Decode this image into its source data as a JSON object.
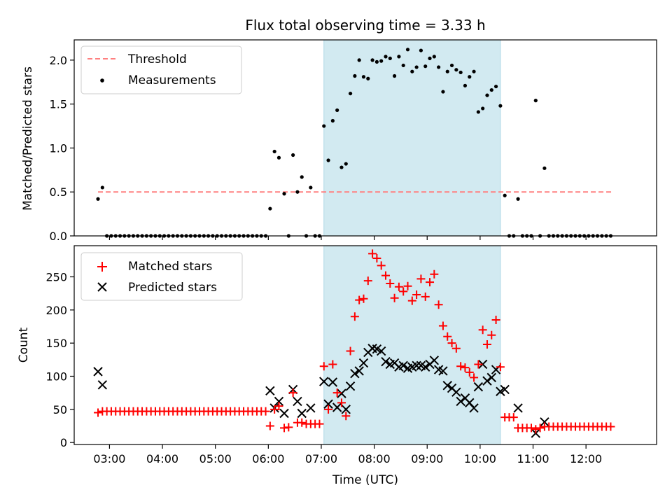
{
  "title": "Flux total observing time = 3.33 h",
  "colors": {
    "shade": "#add8e6",
    "threshold": "#ff8080",
    "measurements": "#000000",
    "matched": "#ff0000",
    "predicted": "#000000"
  },
  "chart_data": [
    {
      "type": "scatter",
      "ylabel": "Matched/Predicted stars",
      "ylim": [
        0,
        2.23
      ],
      "yticks": [
        0.0,
        0.5,
        1.0,
        1.5,
        2.0
      ],
      "ytick_labels": [
        "0.0",
        "0.5",
        "1.0",
        "1.5",
        "2.0"
      ],
      "shaded_span": [
        "07:03",
        "10:23"
      ],
      "legend": {
        "placement": "upper left",
        "entries": [
          "Threshold",
          "Measurements"
        ]
      },
      "threshold": {
        "name": "Threshold",
        "value": 0.5,
        "x_range": [
          "02:47",
          "12:31"
        ]
      },
      "series": [
        {
          "name": "Measurements",
          "points": [
            [
              "02:47",
              0.42
            ],
            [
              "02:52",
              0.55
            ],
            [
              "06:02",
              0.31
            ],
            [
              "06:07",
              0.96
            ],
            [
              "06:12",
              0.89
            ],
            [
              "06:18",
              0.48
            ],
            [
              "06:23",
              0.0
            ],
            [
              "06:28",
              0.92
            ],
            [
              "06:33",
              0.5
            ],
            [
              "06:38",
              0.67
            ],
            [
              "06:43",
              0.0
            ],
            [
              "06:48",
              0.55
            ],
            [
              "06:53",
              0.0
            ],
            [
              "06:58",
              0.0
            ],
            [
              "07:03",
              1.25
            ],
            [
              "07:08",
              0.86
            ],
            [
              "07:13",
              1.31
            ],
            [
              "07:18",
              1.43
            ],
            [
              "07:23",
              0.78
            ],
            [
              "07:28",
              0.82
            ],
            [
              "07:33",
              1.62
            ],
            [
              "07:38",
              1.82
            ],
            [
              "07:43",
              2.0
            ],
            [
              "07:48",
              1.81
            ],
            [
              "07:53",
              1.79
            ],
            [
              "07:58",
              2.0
            ],
            [
              "08:03",
              1.98
            ],
            [
              "08:08",
              1.99
            ],
            [
              "08:13",
              2.04
            ],
            [
              "08:18",
              2.02
            ],
            [
              "08:23",
              1.82
            ],
            [
              "08:28",
              2.04
            ],
            [
              "08:33",
              1.94
            ],
            [
              "08:38",
              2.12
            ],
            [
              "08:43",
              1.87
            ],
            [
              "08:48",
              1.92
            ],
            [
              "08:53",
              2.11
            ],
            [
              "08:58",
              1.93
            ],
            [
              "09:03",
              2.02
            ],
            [
              "09:08",
              2.04
            ],
            [
              "09:13",
              1.92
            ],
            [
              "09:18",
              1.64
            ],
            [
              "09:23",
              1.87
            ],
            [
              "09:28",
              1.94
            ],
            [
              "09:33",
              1.89
            ],
            [
              "09:38",
              1.86
            ],
            [
              "09:43",
              1.71
            ],
            [
              "09:48",
              1.81
            ],
            [
              "09:53",
              1.87
            ],
            [
              "09:58",
              1.41
            ],
            [
              "10:03",
              1.45
            ],
            [
              "10:08",
              1.6
            ],
            [
              "10:13",
              1.66
            ],
            [
              "10:18",
              1.7
            ],
            [
              "10:23",
              1.48
            ],
            [
              "10:28",
              0.46
            ],
            [
              "10:33",
              0.0
            ],
            [
              "10:38",
              0.0
            ],
            [
              "10:43",
              0.42
            ],
            [
              "10:48",
              0.0
            ],
            [
              "10:53",
              0.0
            ],
            [
              "10:58",
              0.0
            ],
            [
              "11:03",
              1.54
            ],
            [
              "11:08",
              0.0
            ],
            [
              "11:13",
              0.77
            ]
          ],
          "zero_runs": [
            [
              "02:57",
              "05:57"
            ],
            [
              "11:18",
              "12:28"
            ]
          ]
        }
      ]
    },
    {
      "type": "scatter",
      "xlabel": "Time (UTC)",
      "ylabel": "Count",
      "ylim": [
        -3,
        297
      ],
      "yticks": [
        0,
        50,
        100,
        150,
        200,
        250
      ],
      "ytick_labels": [
        "0",
        "50",
        "100",
        "150",
        "200",
        "250"
      ],
      "xticks": [
        "03:00",
        "04:00",
        "05:00",
        "06:00",
        "07:00",
        "08:00",
        "09:00",
        "10:00",
        "11:00",
        "12:00"
      ],
      "xlim": [
        "02:20",
        "13:20"
      ],
      "shaded_span": [
        "07:03",
        "10:23"
      ],
      "legend": {
        "placement": "upper left",
        "entries": [
          "Matched stars",
          "Predicted stars"
        ]
      },
      "series": [
        {
          "name": "Matched stars",
          "marker": "plus",
          "points": [
            [
              "02:47",
              45
            ],
            [
              "02:52",
              47
            ],
            [
              "06:02",
              25
            ],
            [
              "06:07",
              50
            ],
            [
              "06:12",
              55
            ],
            [
              "06:18",
              22
            ],
            [
              "06:23",
              23
            ],
            [
              "06:28",
              75
            ],
            [
              "06:33",
              30
            ],
            [
              "06:38",
              30
            ],
            [
              "06:43",
              28
            ],
            [
              "06:48",
              28
            ],
            [
              "06:53",
              28
            ],
            [
              "06:58",
              28
            ],
            [
              "07:03",
              115
            ],
            [
              "07:08",
              50
            ],
            [
              "07:13",
              118
            ],
            [
              "07:18",
              75
            ],
            [
              "07:23",
              60
            ],
            [
              "07:28",
              40
            ],
            [
              "07:33",
              138
            ],
            [
              "07:38",
              190
            ],
            [
              "07:43",
              215
            ],
            [
              "07:48",
              217
            ],
            [
              "07:53",
              244
            ],
            [
              "07:58",
              285
            ],
            [
              "08:03",
              278
            ],
            [
              "08:08",
              267
            ],
            [
              "08:13",
              252
            ],
            [
              "08:18",
              240
            ],
            [
              "08:23",
              218
            ],
            [
              "08:28",
              235
            ],
            [
              "08:33",
              228
            ],
            [
              "08:38",
              236
            ],
            [
              "08:43",
              214
            ],
            [
              "08:48",
              223
            ],
            [
              "08:53",
              247
            ],
            [
              "08:58",
              220
            ],
            [
              "09:03",
              242
            ],
            [
              "09:08",
              254
            ],
            [
              "09:13",
              208
            ],
            [
              "09:18",
              176
            ],
            [
              "09:23",
              160
            ],
            [
              "09:28",
              150
            ],
            [
              "09:33",
              142
            ],
            [
              "09:38",
              115
            ],
            [
              "09:43",
              113
            ],
            [
              "09:48",
              106
            ],
            [
              "09:53",
              98
            ],
            [
              "09:58",
              118
            ],
            [
              "10:03",
              170
            ],
            [
              "10:08",
              148
            ],
            [
              "10:13",
              162
            ],
            [
              "10:18",
              185
            ],
            [
              "10:23",
              114
            ],
            [
              "10:28",
              38
            ],
            [
              "10:33",
              38
            ],
            [
              "10:38",
              38
            ],
            [
              "10:43",
              22
            ],
            [
              "10:48",
              22
            ],
            [
              "10:53",
              22
            ],
            [
              "10:58",
              22
            ],
            [
              "11:03",
              20
            ],
            [
              "11:08",
              22
            ],
            [
              "11:13",
              24
            ]
          ],
          "constant_runs": [
            [
              "02:57",
              "05:57",
              47
            ],
            [
              "11:18",
              "12:28",
              24
            ]
          ]
        },
        {
          "name": "Predicted stars",
          "marker": "x",
          "points": [
            [
              "02:47",
              107
            ],
            [
              "02:52",
              87
            ],
            [
              "06:02",
              78
            ],
            [
              "06:07",
              52
            ],
            [
              "06:12",
              62
            ],
            [
              "06:18",
              44
            ],
            [
              "06:28",
              80
            ],
            [
              "06:33",
              62
            ],
            [
              "06:38",
              44
            ],
            [
              "06:48",
              52
            ],
            [
              "07:03",
              92
            ],
            [
              "07:08",
              58
            ],
            [
              "07:13",
              91
            ],
            [
              "07:18",
              53
            ],
            [
              "07:23",
              74
            ],
            [
              "07:28",
              50
            ],
            [
              "07:33",
              85
            ],
            [
              "07:38",
              104
            ],
            [
              "07:43",
              108
            ],
            [
              "07:48",
              120
            ],
            [
              "07:53",
              136
            ],
            [
              "07:58",
              142
            ],
            [
              "08:03",
              141
            ],
            [
              "08:08",
              138
            ],
            [
              "08:13",
              122
            ],
            [
              "08:18",
              118
            ],
            [
              "08:23",
              120
            ],
            [
              "08:28",
              114
            ],
            [
              "08:33",
              116
            ],
            [
              "08:38",
              112
            ],
            [
              "08:43",
              114
            ],
            [
              "08:48",
              116
            ],
            [
              "08:53",
              116
            ],
            [
              "08:58",
              114
            ],
            [
              "09:03",
              118
            ],
            [
              "09:08",
              124
            ],
            [
              "09:13",
              110
            ],
            [
              "09:18",
              108
            ],
            [
              "09:23",
              86
            ],
            [
              "09:28",
              82
            ],
            [
              "09:33",
              76
            ],
            [
              "09:38",
              62
            ],
            [
              "09:43",
              67
            ],
            [
              "09:48",
              60
            ],
            [
              "09:53",
              52
            ],
            [
              "09:58",
              84
            ],
            [
              "10:03",
              118
            ],
            [
              "10:08",
              93
            ],
            [
              "10:13",
              98
            ],
            [
              "10:18",
              110
            ],
            [
              "10:23",
              77
            ],
            [
              "10:28",
              80
            ],
            [
              "10:43",
              52
            ],
            [
              "11:03",
              14
            ],
            [
              "11:13",
              31
            ]
          ]
        }
      ]
    }
  ]
}
